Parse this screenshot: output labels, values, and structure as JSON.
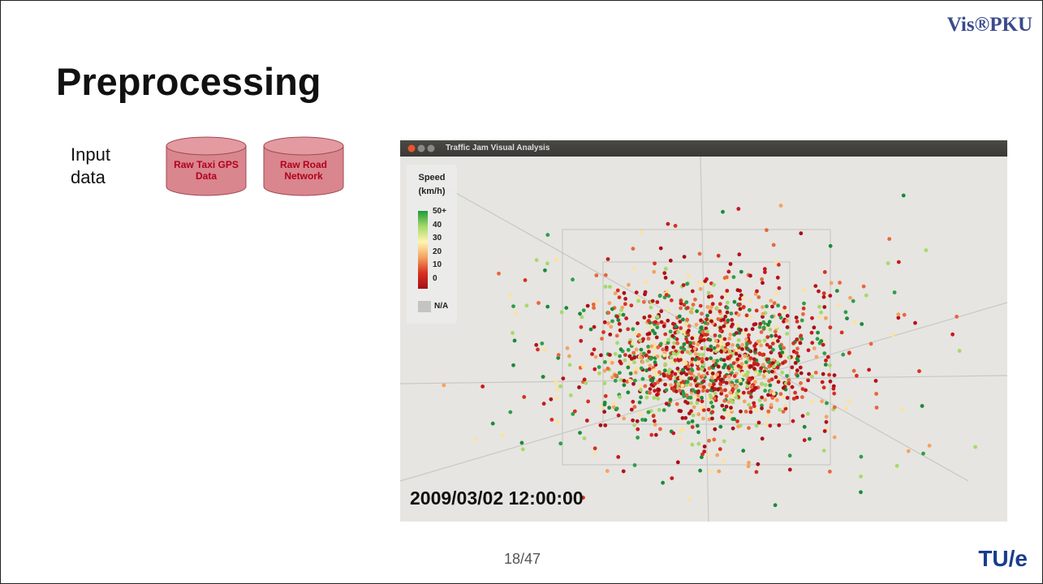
{
  "header": {
    "logo": "Vis®PKU",
    "title": "Preprocessing"
  },
  "input": {
    "label": "Input data",
    "sources": [
      "Raw Taxi GPS Data",
      "Raw Road Network"
    ]
  },
  "screenshot": {
    "window_title": "Traffic Jam Visual Analysis",
    "legend": {
      "title": "Speed (km/h)",
      "labels": [
        "50+",
        "40",
        "30",
        "20",
        "10",
        "0"
      ],
      "na": "N/A"
    },
    "timestamp": "2009/03/02 12:00:00"
  },
  "footer": {
    "page": "18/47",
    "logo": "TU/e"
  }
}
